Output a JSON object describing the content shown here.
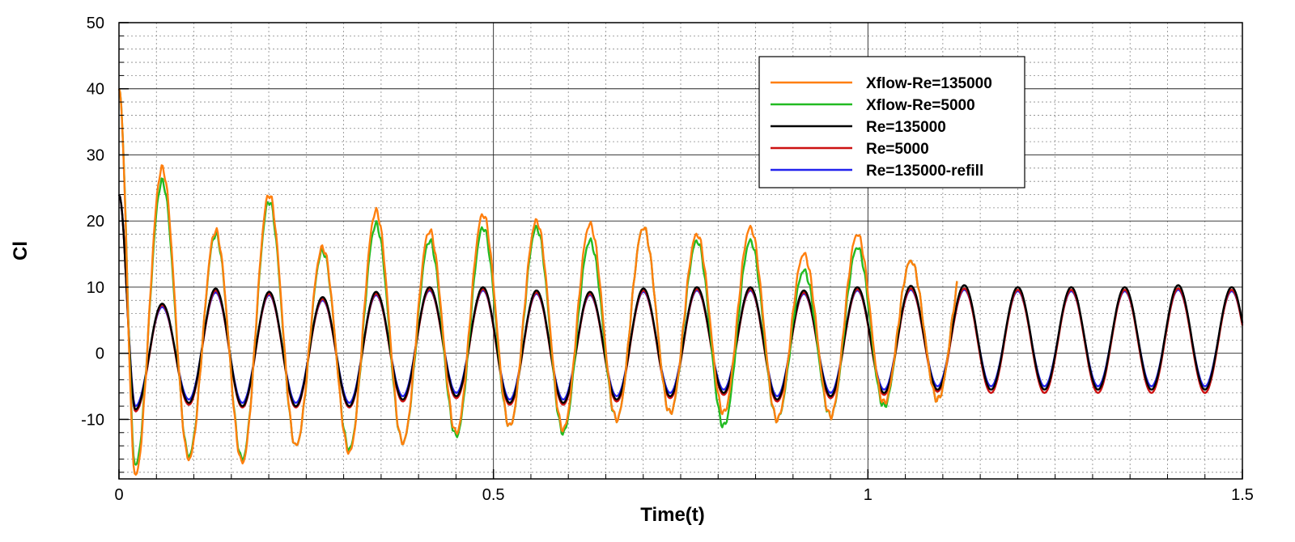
{
  "chart_data": {
    "type": "line",
    "title": "",
    "xlabel": "Time(t)",
    "ylabel": "Cl",
    "xlim": [
      0,
      1.5
    ],
    "ylim": [
      -19,
      50
    ],
    "x_ticks": [
      0,
      0.5,
      1,
      1.5
    ],
    "x_tick_labels": [
      "0",
      "0.5",
      "1",
      "1.5"
    ],
    "y_ticks": [
      -10,
      0,
      10,
      20,
      30,
      40,
      50
    ],
    "y_tick_labels": [
      "-10",
      "0",
      "10",
      "20",
      "30",
      "40",
      "50"
    ],
    "grid": true,
    "legend_position": "top-right",
    "period": 0.0714,
    "series": [
      {
        "name": "Xflow-Re=135000",
        "color": "#ff7f0e",
        "x_end": 1.12,
        "peaks": [
          28,
          18.5,
          24,
          16,
          21.5,
          18.5,
          21,
          20,
          19.5,
          19,
          18,
          19,
          15,
          18,
          14,
          14
        ],
        "troughs": [
          -18.5,
          -16,
          -16.5,
          -14,
          -15,
          -13.5,
          -12,
          -11,
          -11.5,
          -10,
          -9,
          -9,
          -10,
          -9.5,
          -7.5,
          -7,
          -10
        ]
      },
      {
        "name": "Xflow-Re=5000",
        "color": "#22bb22",
        "x_end": 1.12,
        "peaks": [
          26,
          18,
          23,
          15.5,
          19.5,
          17,
          19,
          19,
          17,
          19,
          17,
          17,
          12.5,
          16,
          14,
          14
        ],
        "troughs": [
          -17,
          -15.5,
          -16,
          -14,
          -14.5,
          -13.5,
          -12.5,
          -11,
          -12,
          -10,
          -9,
          -11,
          -10,
          -9.5,
          -8,
          -7,
          -10
        ]
      },
      {
        "name": "Re=135000",
        "color": "#000000",
        "x_end": 1.5,
        "peaks": [
          7.5,
          9.8,
          9.3,
          8.5,
          9.3,
          10,
          10,
          9.5,
          9.3,
          9.8,
          10,
          10,
          9.5,
          10,
          10.2,
          10.3,
          10,
          10,
          10,
          10.3,
          10,
          9.8
        ],
        "troughs": [
          -8.5,
          -7.5,
          -8,
          -8,
          -8,
          -7,
          -6.5,
          -7.5,
          -7.5,
          -7,
          -6.5,
          -6,
          -7,
          -6.5,
          -6,
          -5.5,
          -5.5,
          -5.5,
          -5.5,
          -5.5,
          -5.5,
          -5.5
        ]
      },
      {
        "name": "Re=5000",
        "color": "#cc1111",
        "x_end": 1.5,
        "peaks": [
          7.3,
          9.5,
          9,
          8.2,
          9,
          9.7,
          9.7,
          9.2,
          9,
          9.5,
          9.7,
          9.7,
          9.2,
          9.7,
          9.8,
          9.8,
          9.6,
          9.6,
          9.6,
          9.8,
          9.6,
          9.4
        ],
        "troughs": [
          -8.8,
          -7.8,
          -8.2,
          -8.2,
          -8.2,
          -7.3,
          -6.8,
          -7.8,
          -7.8,
          -7.3,
          -6.8,
          -6.3,
          -7.3,
          -6.8,
          -6.3,
          -5.8,
          -6,
          -6,
          -6,
          -6,
          -6,
          -6
        ]
      },
      {
        "name": "Re=135000-refill",
        "color": "#2222ee",
        "x_end": 1.5,
        "peaks": [
          7,
          9.2,
          8.8,
          8,
          8.8,
          9.5,
          9.5,
          9,
          8.8,
          9.3,
          9.5,
          9.5,
          9,
          9.5,
          9.6,
          9.6,
          9.4,
          9.4,
          9.4,
          9.6,
          9.4,
          9.2
        ],
        "troughs": [
          -8,
          -7,
          -7.5,
          -7.5,
          -7.5,
          -6.5,
          -6,
          -7,
          -7,
          -6.5,
          -6,
          -5.5,
          -6.5,
          -6,
          -5.5,
          -5,
          -5,
          -5,
          -5,
          -5,
          -5,
          -5
        ]
      }
    ]
  }
}
